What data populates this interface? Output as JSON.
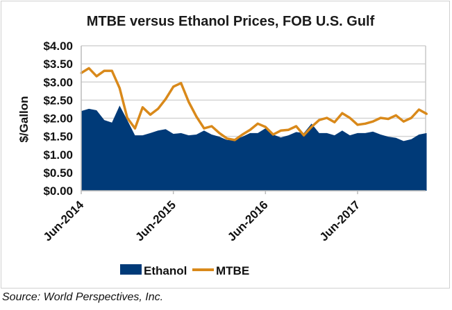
{
  "chart_data": {
    "type": "area",
    "title": "MTBE versus Ethanol Prices, FOB U.S. Gulf",
    "xlabel": "",
    "ylabel": "$/Gallon",
    "ylim": [
      0,
      4
    ],
    "yticks": [
      "$0.00",
      "$0.50",
      "$1.00",
      "$1.50",
      "$2.00",
      "$2.50",
      "$3.00",
      "$3.50",
      "$4.00"
    ],
    "ytick_values": [
      0,
      0.5,
      1,
      1.5,
      2,
      2.5,
      3,
      3.5,
      4
    ],
    "xticks": [
      "Jun-2014",
      "Jun-2015",
      "Jun-2016",
      "Jun-2017"
    ],
    "xtick_month_index": [
      0,
      12,
      24,
      36
    ],
    "x_unit": "months since Jun-2014",
    "x": [
      0,
      1,
      2,
      3,
      4,
      5,
      6,
      7,
      8,
      9,
      10,
      11,
      12,
      13,
      14,
      15,
      16,
      17,
      18,
      19,
      20,
      21,
      22,
      23,
      24,
      25,
      26,
      27,
      28,
      29,
      30,
      31,
      32,
      33,
      34,
      35,
      36,
      37,
      38,
      39,
      40,
      41,
      42,
      43,
      44,
      45
    ],
    "grid": true,
    "legend_position": "bottom",
    "series": [
      {
        "name": "Ethanol",
        "style": "area",
        "color": "#003a78",
        "values": [
          2.2,
          2.26,
          2.22,
          1.95,
          1.88,
          2.35,
          1.95,
          1.53,
          1.53,
          1.59,
          1.66,
          1.7,
          1.57,
          1.59,
          1.53,
          1.55,
          1.66,
          1.55,
          1.49,
          1.4,
          1.42,
          1.49,
          1.59,
          1.59,
          1.72,
          1.55,
          1.47,
          1.53,
          1.62,
          1.59,
          1.85,
          1.59,
          1.59,
          1.53,
          1.66,
          1.53,
          1.59,
          1.59,
          1.63,
          1.55,
          1.49,
          1.46,
          1.37,
          1.42,
          1.55,
          1.59
        ]
      },
      {
        "name": "MTBE",
        "style": "line",
        "color": "#d9891a",
        "values": [
          3.25,
          3.38,
          3.16,
          3.31,
          3.31,
          2.83,
          2.01,
          1.72,
          2.3,
          2.1,
          2.26,
          2.53,
          2.87,
          2.97,
          2.45,
          2.05,
          1.72,
          1.78,
          1.59,
          1.44,
          1.4,
          1.55,
          1.68,
          1.85,
          1.76,
          1.55,
          1.66,
          1.68,
          1.78,
          1.53,
          1.76,
          1.95,
          2.01,
          1.89,
          2.14,
          2.01,
          1.82,
          1.85,
          1.91,
          2.01,
          1.98,
          2.08,
          1.91,
          2.01,
          2.24,
          2.12
        ]
      }
    ]
  },
  "source": "Source: World Perspectives, Inc."
}
